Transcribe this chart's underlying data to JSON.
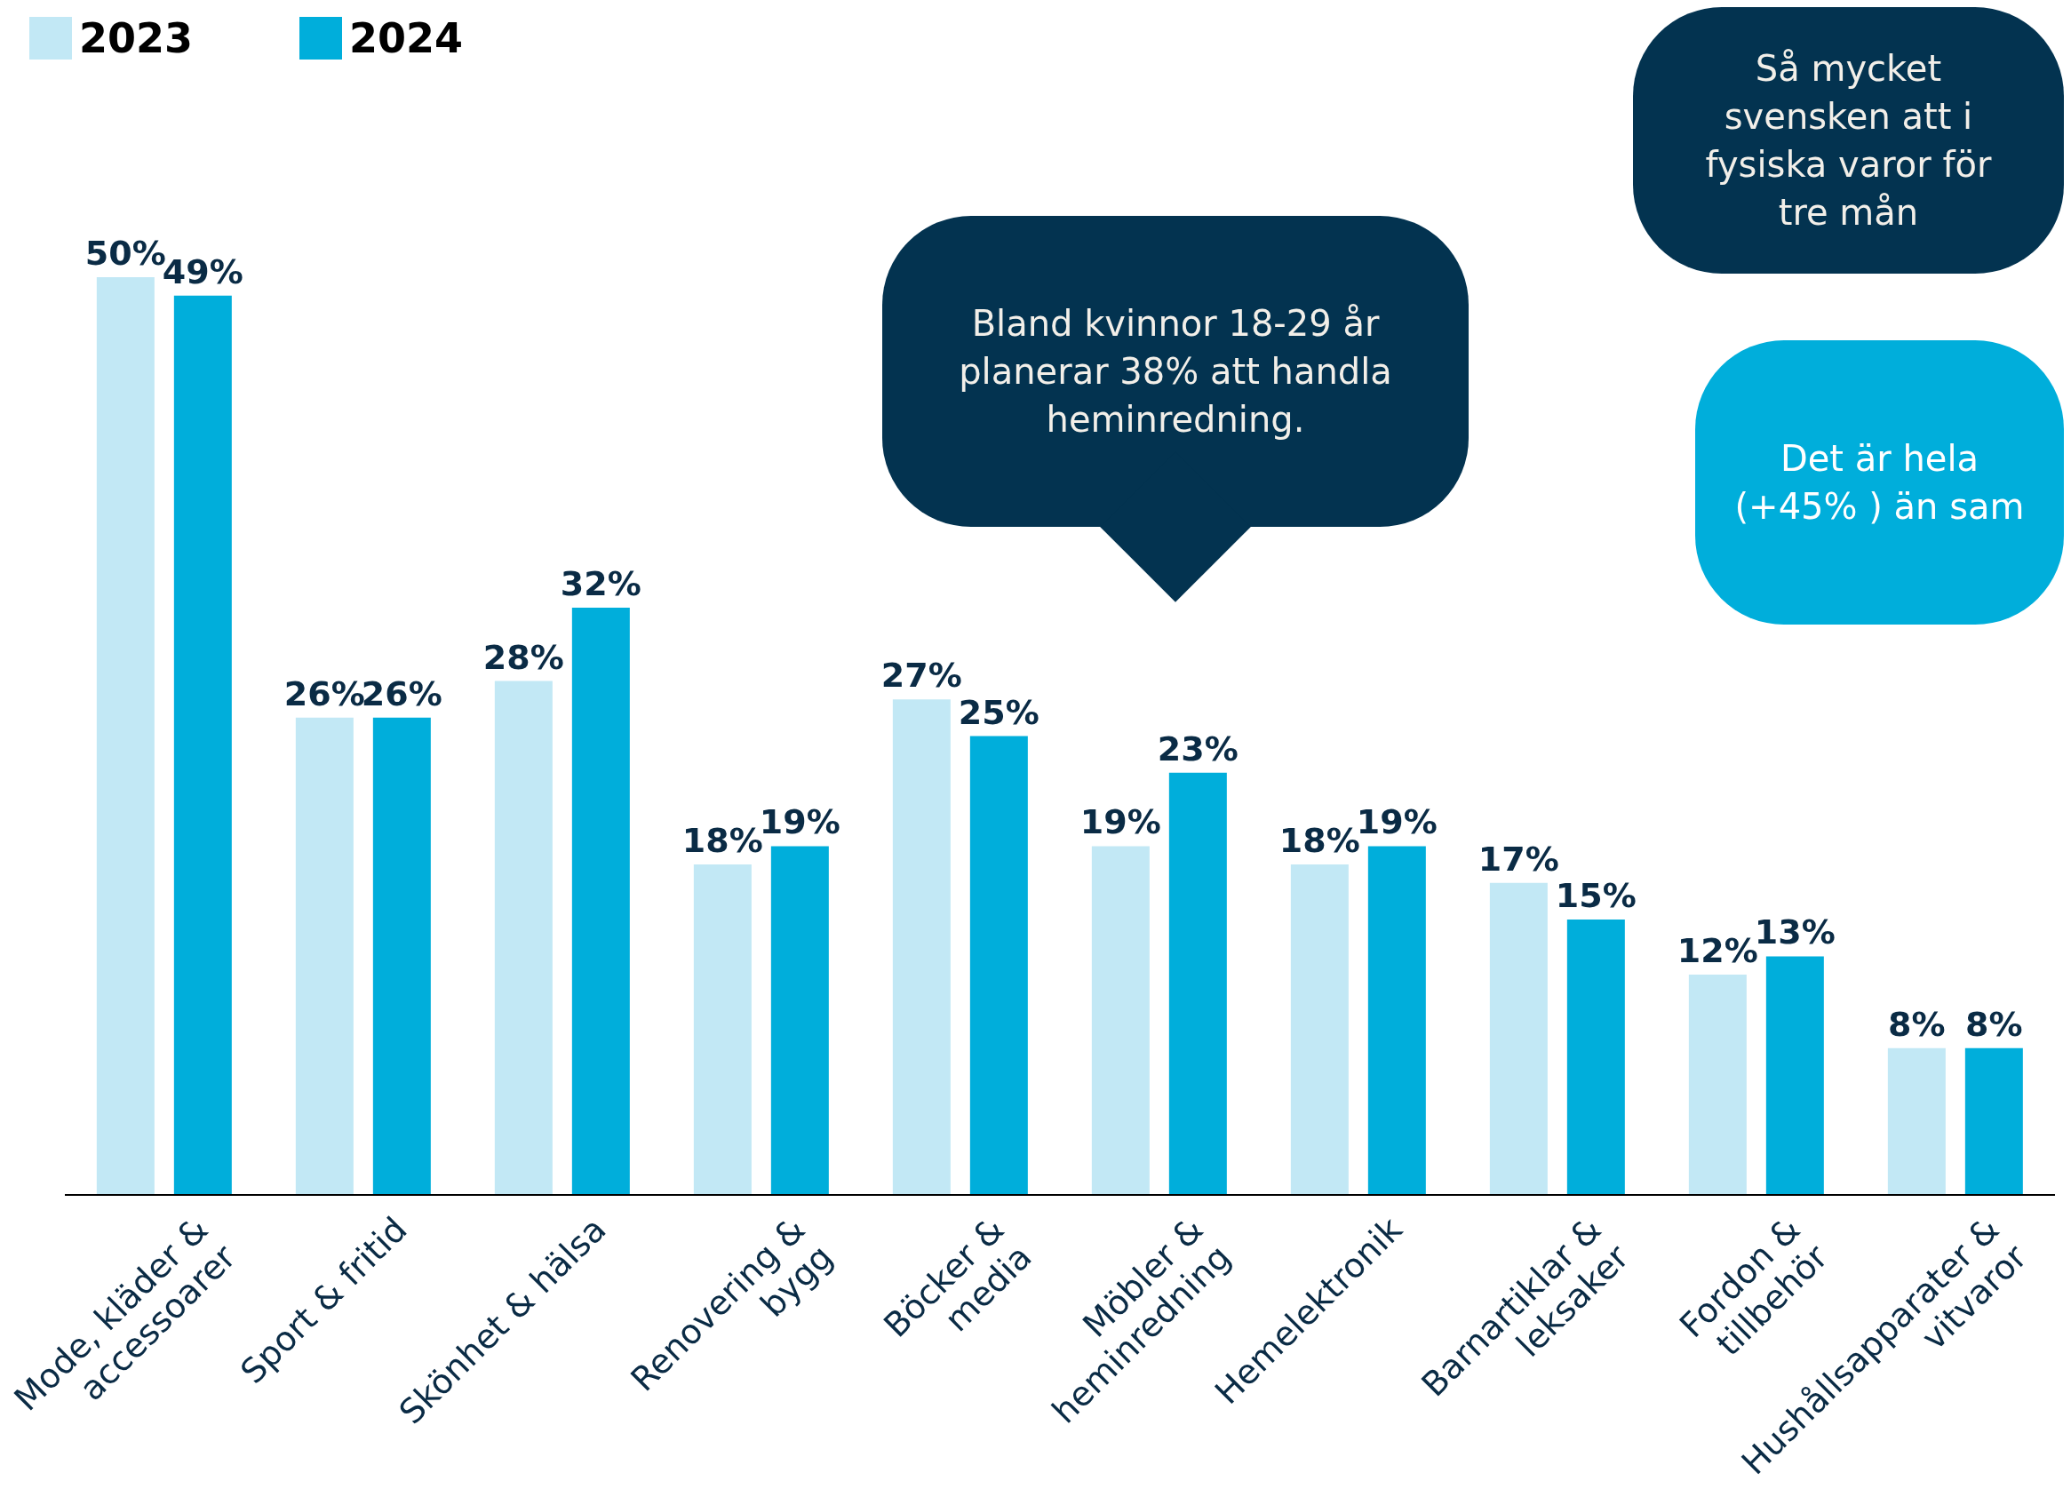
{
  "chart_data": {
    "type": "bar",
    "categories": [
      "Mode, kläder &\naccessoarer",
      "Sport & fritid",
      "Skönhet & hälsa",
      "Renovering &\nbygg",
      "Böcker &\nmedia",
      "Möbler &\nheminredning",
      "Hemelektronik",
      "Barnartiklar &\nleksaker",
      "Fordon &\ntillbehör",
      "Hushållsapparater &\nvitvaror"
    ],
    "series": [
      {
        "name": "2023",
        "color": "#c2e8f5",
        "values": [
          50,
          26,
          28,
          18,
          27,
          19,
          18,
          17,
          12,
          8
        ],
        "value_labels": [
          "50%",
          "26%",
          "28%",
          "18%",
          "27%",
          "19%",
          "18%",
          "17%",
          "12%",
          "8%"
        ]
      },
      {
        "name": "2024",
        "color": "#00aedb",
        "values": [
          49,
          26,
          32,
          19,
          25,
          23,
          19,
          15,
          13,
          8
        ],
        "value_labels": [
          "49%",
          "26%",
          "32%",
          "19%",
          "25%",
          "23%",
          "19%",
          "15%",
          "13%",
          "8%"
        ]
      }
    ],
    "legend": "top left",
    "annotations": [
      "Bland kvinnor 18-29 år\nplanerar 38% att handla\nheminredning.",
      "Så mycket\nsvensken att i\nfysiska varor för\ntre mån",
      "Det är hela\n(+45% ) än sam"
    ]
  }
}
